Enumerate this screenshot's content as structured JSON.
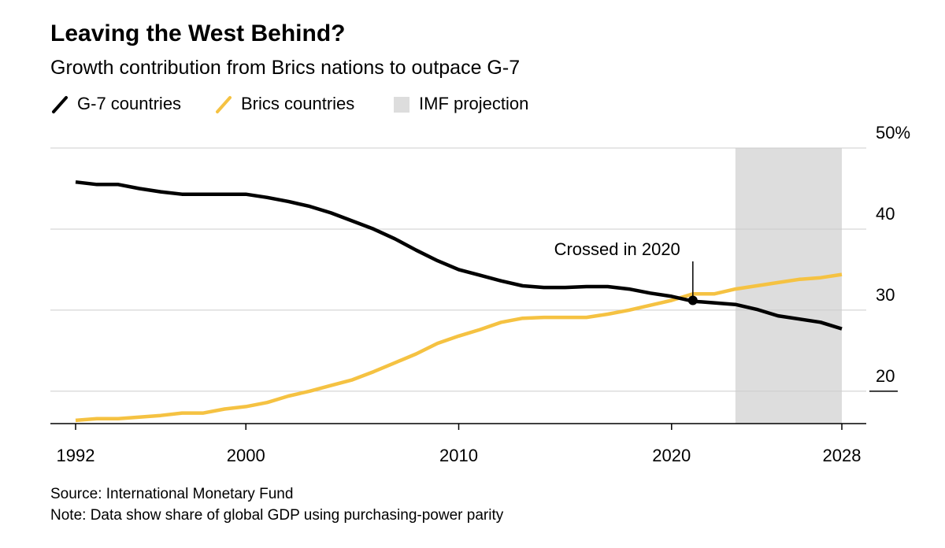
{
  "header": {
    "title": "Leaving the West Behind?",
    "subtitle": "Growth contribution from Brics nations to outpace G-7"
  },
  "legend": {
    "g7_label": "G-7 countries",
    "brics_label": "Brics countries",
    "projection_label": "IMF projection"
  },
  "colors": {
    "g7": "#000000",
    "brics": "#f5c242",
    "projection": "#dddddd",
    "grid": "#cccccc",
    "axis": "#000000"
  },
  "chart_data": {
    "type": "line",
    "title": "Leaving the West Behind?",
    "subtitle": "Growth contribution from Brics nations to outpace G-7",
    "xlabel": "",
    "ylabel": "",
    "xlim": [
      1992,
      2028
    ],
    "ylim": [
      16,
      50
    ],
    "x_ticks": [
      {
        "value": 1992,
        "label": "1992"
      },
      {
        "value": 2000,
        "label": "2000"
      },
      {
        "value": 2010,
        "label": "2010"
      },
      {
        "value": 2020,
        "label": "2020"
      },
      {
        "value": 2028,
        "label": "2028"
      }
    ],
    "y_ticks": [
      {
        "value": 50,
        "label": "50%"
      },
      {
        "value": 40,
        "label": "40"
      },
      {
        "value": 30,
        "label": "30"
      },
      {
        "value": 20,
        "label": "20"
      }
    ],
    "projection_range": [
      2023,
      2028
    ],
    "series": [
      {
        "name": "G-7 countries",
        "x": [
          1992,
          1993,
          1994,
          1995,
          1996,
          1997,
          1998,
          1999,
          2000,
          2001,
          2002,
          2003,
          2004,
          2005,
          2006,
          2007,
          2008,
          2009,
          2010,
          2011,
          2012,
          2013,
          2014,
          2015,
          2016,
          2017,
          2018,
          2019,
          2020,
          2021,
          2022,
          2023,
          2024,
          2025,
          2026,
          2027,
          2028
        ],
        "values": [
          45.8,
          45.5,
          45.5,
          45.0,
          44.6,
          44.3,
          44.3,
          44.3,
          44.3,
          43.9,
          43.4,
          42.8,
          42.0,
          41.0,
          40.0,
          38.8,
          37.4,
          36.1,
          35.0,
          34.3,
          33.6,
          33.0,
          32.8,
          32.8,
          32.9,
          32.9,
          32.6,
          32.1,
          31.7,
          31.1,
          30.9,
          30.7,
          30.1,
          29.3,
          28.9,
          28.5,
          27.7
        ]
      },
      {
        "name": "Brics countries",
        "x": [
          1992,
          1993,
          1994,
          1995,
          1996,
          1997,
          1998,
          1999,
          2000,
          2001,
          2002,
          2003,
          2004,
          2005,
          2006,
          2007,
          2008,
          2009,
          2010,
          2011,
          2012,
          2013,
          2014,
          2015,
          2016,
          2017,
          2018,
          2019,
          2020,
          2021,
          2022,
          2023,
          2024,
          2025,
          2026,
          2027,
          2028
        ],
        "values": [
          16.4,
          16.6,
          16.6,
          16.8,
          17.0,
          17.3,
          17.3,
          17.8,
          18.1,
          18.6,
          19.4,
          20.0,
          20.7,
          21.4,
          22.4,
          23.5,
          24.6,
          25.9,
          26.8,
          27.6,
          28.5,
          29.0,
          29.1,
          29.1,
          29.1,
          29.5,
          30.0,
          30.6,
          31.2,
          32.0,
          32.0,
          32.6,
          33.0,
          33.4,
          33.8,
          34.0,
          34.4
        ]
      }
    ],
    "annotations": [
      {
        "text": "Crossed in 2020",
        "x": 2020,
        "y": 31.2
      }
    ]
  },
  "footer": {
    "source": "Source: International Monetary Fund",
    "note": "Note: Data show share of global GDP using purchasing-power parity"
  }
}
